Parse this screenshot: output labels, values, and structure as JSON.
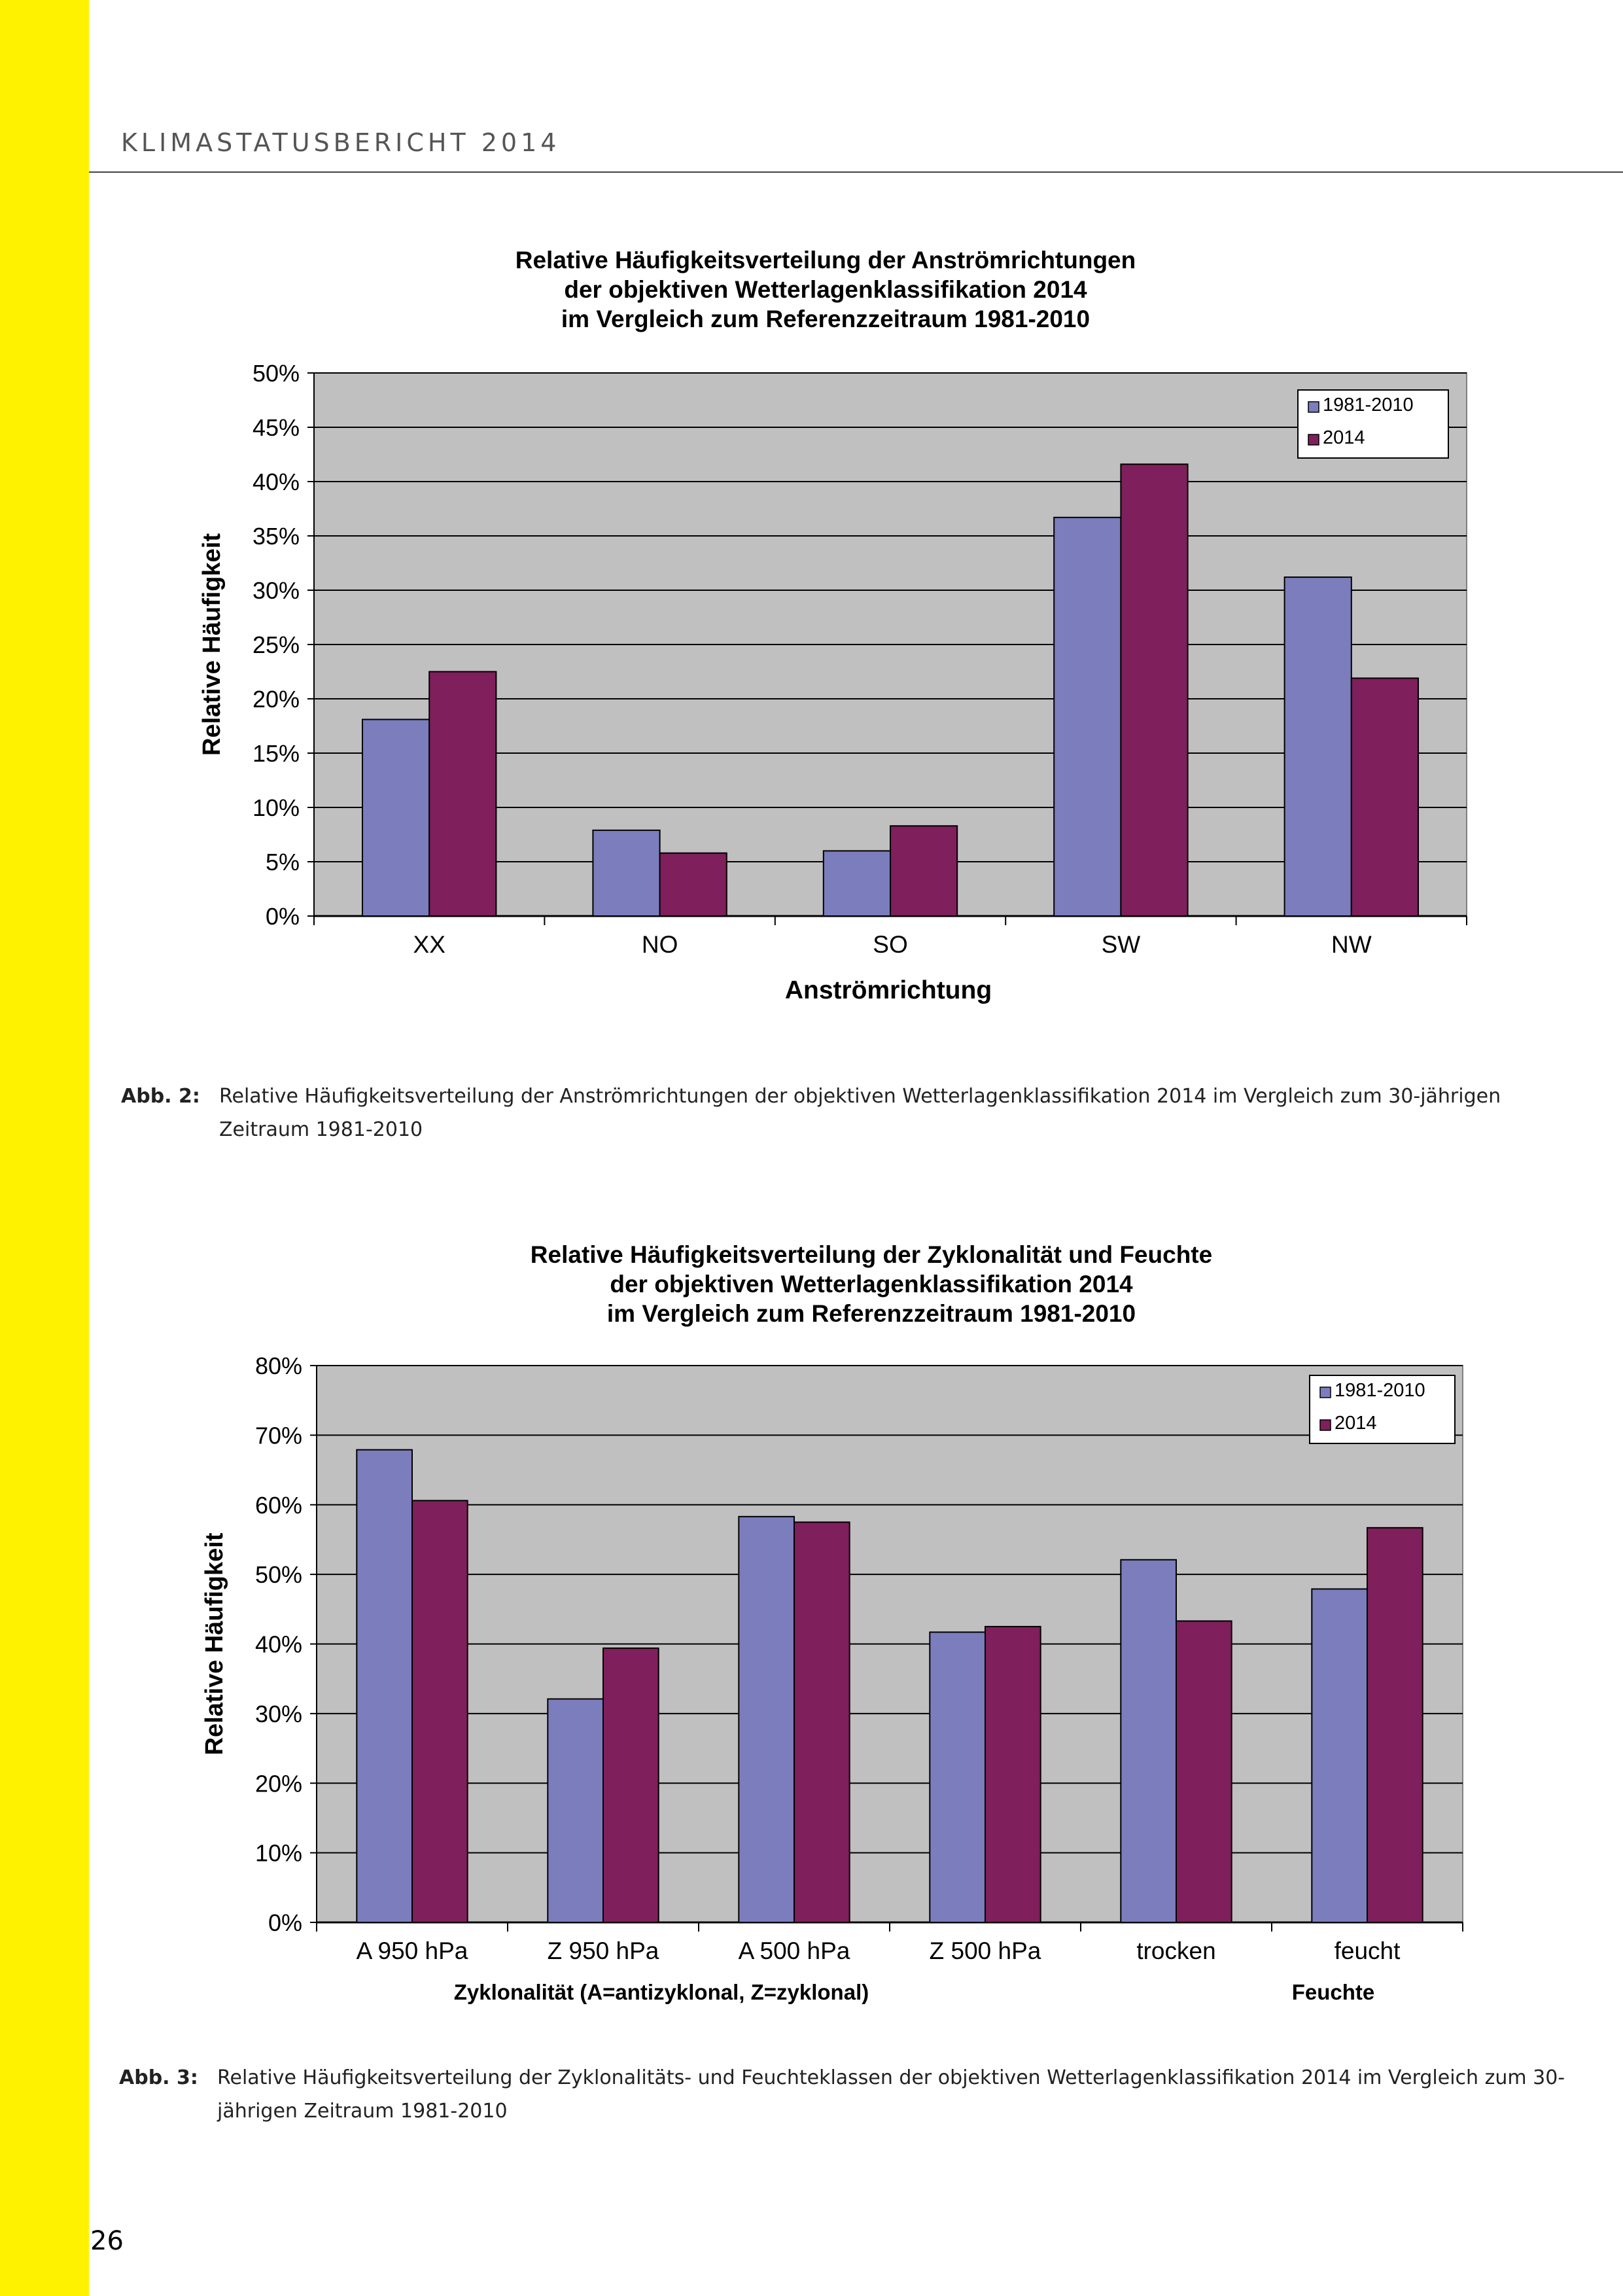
{
  "header": {
    "title": "KLIMASTATUSBERICHT 2014"
  },
  "page_number": "26",
  "colors": {
    "accent_bar": "#fff200",
    "series_1981_2010": "#7b7dbd",
    "series_2014": "#7f1f5b",
    "plot_background": "#c0c0c0"
  },
  "charts": [
    {
      "caption_label": "Abb. 2:",
      "caption_text": "Relative Häufigkeitsverteilung der Anströmrichtungen der objektiven Wetterlagenklassifikation 2014 im Vergleich zum 30-jährigen Zeitraum 1981-2010"
    },
    {
      "caption_label": "Abb. 3:",
      "caption_text": "Relative Häufigkeitsverteilung der Zyklonalitäts- und Feuchteklassen der objektiven Wetterlagenklassifikation 2014 im Vergleich zum 30-jährigen Zeitraum 1981-2010"
    }
  ],
  "chart_data": [
    {
      "type": "bar",
      "title": [
        "Relative Häufigkeitsverteilung der Anströmrichtungen",
        "der objektiven Wetterlagenklassifikation 2014",
        "im Vergleich zum Referenzzeitraum 1981-2010"
      ],
      "xlabel": "Anströmrichtung",
      "ylabel": "Relative Häufigkeit",
      "categories": [
        "XX",
        "NO",
        "SO",
        "SW",
        "NW"
      ],
      "series": [
        {
          "name": "1981-2010",
          "values": [
            18.1,
            7.9,
            6.0,
            36.7,
            31.2
          ]
        },
        {
          "name": "2014",
          "values": [
            22.5,
            5.8,
            8.3,
            41.6,
            21.9
          ]
        }
      ],
      "ylim": [
        0,
        50
      ],
      "yticks": [
        "0%",
        "5%",
        "10%",
        "15%",
        "20%",
        "25%",
        "30%",
        "35%",
        "40%",
        "45%",
        "50%"
      ],
      "grid": true,
      "legend_position": "top-right"
    },
    {
      "type": "bar",
      "title": [
        "Relative Häufigkeitsverteilung der Zyklonalität und Feuchte",
        "der objektiven Wetterlagenklassifikation 2014",
        "im Vergleich zum Referenzzeitraum 1981-2010"
      ],
      "xlabel": "Zyklonalität (A=antizyklonal, Z=zyklonal)",
      "xlabel2": "Feuchte",
      "ylabel": "Relative Häufigkeit",
      "categories": [
        "A 950 hPa",
        "Z 950 hPa",
        "A 500 hPa",
        "Z 500 hPa",
        "trocken",
        "feucht"
      ],
      "series": [
        {
          "name": "1981-2010",
          "values": [
            67.9,
            32.1,
            58.3,
            41.7,
            52.1,
            47.9
          ]
        },
        {
          "name": "2014",
          "values": [
            60.6,
            39.4,
            57.5,
            42.5,
            43.3,
            56.7
          ]
        }
      ],
      "ylim": [
        0,
        80
      ],
      "yticks": [
        "0%",
        "10%",
        "20%",
        "30%",
        "40%",
        "50%",
        "60%",
        "70%",
        "80%"
      ],
      "grid": true,
      "legend_position": "top-right"
    }
  ]
}
